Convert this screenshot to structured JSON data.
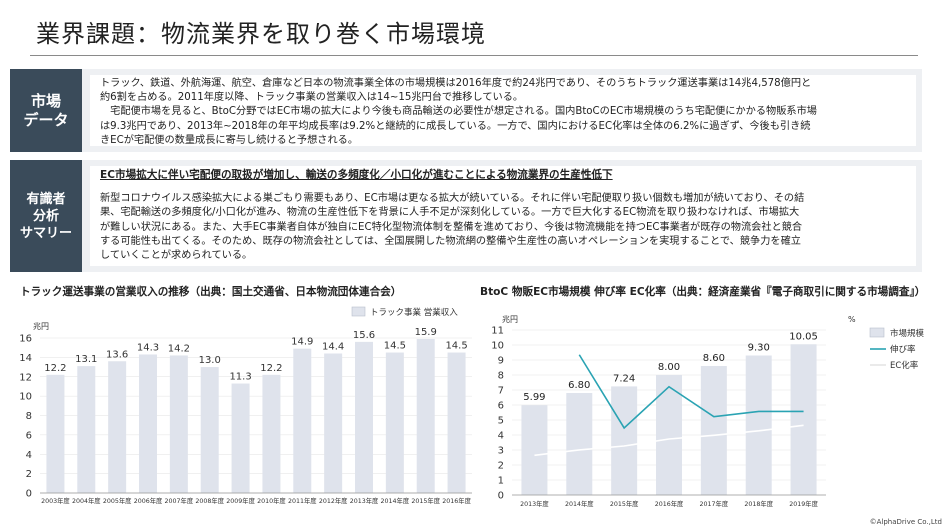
{
  "title": "業界課題：物流業界を取り巻く市場環境",
  "panel1": {
    "label": "市場\nデータ",
    "text": "トラック、鉄道、外航海運、航空、倉庫など日本の物流事業全体の市場規模は2016年度で約24兆円であり、そのうちトラック運送事業は14兆4,578億円と\n約6割を占める。2011年度以降、トラック事業の営業収入は14~15兆円台で推移している。\n　宅配便市場を見ると、BtoC分野ではEC市場の拡大により今後も商品輸送の必要性が想定される。国内BtoCのEC市場規模のうち宅配便にかかる物販系市場\nは9.3兆円であり、2013年~2018年の年平均成長率は9.2%と継続的に成長している。一方で、国内におけるEC化率は全体の6.2%に過ぎず、今後も引き続\nきECが宅配便の数量成長に寄与し続けると予想される。"
  },
  "panel2": {
    "label": "有識者\n分析\nサマリー",
    "headline": "EC市場拡大に伴い宅配便の取扱が増加し、輸送の多頻度化／小口化が進むことによる物流業界の生産性低下",
    "text": "新型コロナウイルス感染拡大による巣ごもり需要もあり、EC市場は更なる拡大が続いている。それに伴い宅配便取り扱い個数も増加が続いており、その結\n果、宅配輸送の多頻度化/小口化が進み、物流の生産性低下を背景に人手不足が深刻化している。一方で巨大化するEC物流を取り扱わなければ、市場拡大\nが難しい状況にある。また、大手EC事業者自体が独自にEC特化型物流体制を整備を進めており、今後は物流機能を持つEC事業者が既存の物流会社と競合\nする可能性も出てくる。そのため、既存の物流会社としては、全国展開した物流網の整備や生産性の高いオペレーションを実現することで、競争力を確立\nしていくことが求められている。"
  },
  "chart_data": [
    {
      "type": "bar",
      "title": "トラック運送事業の営業収入の推移（出典：国土交通省、日本物流団体連合会）",
      "ylabel": "兆円",
      "ylim": [
        0,
        16
      ],
      "yticks": [
        0,
        2,
        4,
        6,
        8,
        10,
        12,
        14,
        16
      ],
      "categories": [
        "2003年度",
        "2004年度",
        "2005年度",
        "2006年度",
        "2007年度",
        "2008年度",
        "2009年度",
        "2010年度",
        "2011年度",
        "2012年度",
        "2013年度",
        "2014年度",
        "2015年度",
        "2016年度"
      ],
      "series": [
        {
          "name": "トラック事業 営業収入",
          "values": [
            12.2,
            13.1,
            13.6,
            14.3,
            14.2,
            13.0,
            11.3,
            12.2,
            14.9,
            14.4,
            15.6,
            14.5,
            15.9,
            14.5
          ]
        }
      ],
      "legend": "top-right",
      "colors": {
        "bar": "#dfe3ec"
      }
    },
    {
      "type": "bar",
      "title": "BtoC 物販EC市場規模 伸び率 EC化率（出典：経済産業省『電子商取引に関する市場調査』）",
      "ylabel": "兆円",
      "y2label": "%",
      "ylim": [
        0,
        11
      ],
      "yticks": [
        0,
        1,
        2,
        3,
        4,
        5,
        6,
        7,
        8,
        9,
        10,
        11
      ],
      "categories": [
        "2013年度",
        "2014年度",
        "2015年度",
        "2016年度",
        "2017年度",
        "2018年度",
        "2019年度"
      ],
      "series": [
        {
          "name": "市場規模",
          "type": "bar",
          "values": [
            5.99,
            6.8,
            7.24,
            8.0,
            8.6,
            9.3,
            10.05
          ]
        },
        {
          "name": "伸び率",
          "type": "line",
          "values": [
            null,
            13.6,
            6.5,
            10.5,
            7.6,
            8.1,
            8.1
          ]
        },
        {
          "name": "EC化率",
          "type": "line",
          "values": [
            3.85,
            4.37,
            4.75,
            5.43,
            5.79,
            6.22,
            6.76
          ]
        }
      ],
      "legend": "right",
      "colors": {
        "bar": "#dfe3ec",
        "growth": "#2aa3b3",
        "ec_rate": "#ffffff"
      }
    }
  ],
  "credit": "©AlphaDrive Co.,Ltd"
}
